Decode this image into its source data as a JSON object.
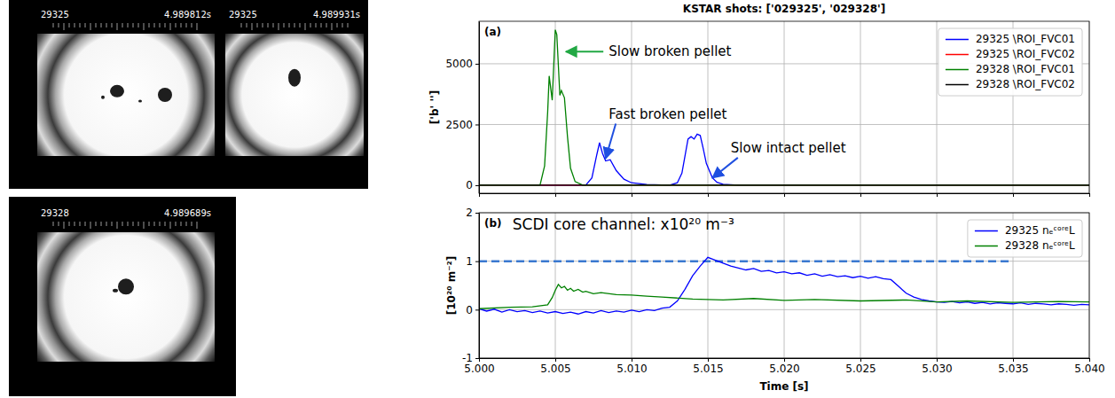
{
  "figure": {
    "title": "KSTAR shots: ['029325', '029328']"
  },
  "images": [
    {
      "shot": "29325",
      "time": "4.989812s"
    },
    {
      "shot": "29325",
      "time": "4.989931s"
    },
    {
      "shot": "29328",
      "time": "4.989689s"
    }
  ],
  "chart_data": [
    {
      "type": "line",
      "panel_label": "(a)",
      "ylabel": "['b' '']",
      "xlim": [
        5.0,
        5.04
      ],
      "ylim": [
        -330,
        6750
      ],
      "xticks": [
        5.0,
        5.005,
        5.01,
        5.015,
        5.02,
        5.025,
        5.03,
        5.035,
        5.04
      ],
      "yticks": [
        0,
        2500,
        5000
      ],
      "grid": true,
      "tick_labels": "y",
      "legend": "upper right",
      "series": [
        {
          "name": "29325 \\ROI_FVC01",
          "color": "#0000ff",
          "x": [
            5.0,
            5.007,
            5.0074,
            5.0077,
            5.0079,
            5.0081,
            5.0083,
            5.0086,
            5.009,
            5.0095,
            5.01,
            5.011,
            5.0125,
            5.013,
            5.0133,
            5.0135,
            5.0137,
            5.0139,
            5.0141,
            5.0143,
            5.0145,
            5.0147,
            5.0149,
            5.0151,
            5.0153,
            5.0156,
            5.016,
            5.017,
            5.04
          ],
          "values": [
            0,
            0,
            300,
            1200,
            1750,
            1300,
            1000,
            1050,
            600,
            250,
            100,
            30,
            0,
            100,
            500,
            1200,
            1900,
            2000,
            1900,
            2100,
            2050,
            1500,
            900,
            600,
            300,
            120,
            40,
            0,
            0
          ]
        },
        {
          "name": "29325 \\ROI_FVC02",
          "color": "#ff0000",
          "x": [
            5.0,
            5.04
          ],
          "values": [
            0,
            0
          ]
        },
        {
          "name": "29328 \\ROI_FVC01",
          "color": "#008000",
          "x": [
            5.0,
            5.004,
            5.0043,
            5.0045,
            5.0046,
            5.0048,
            5.005,
            5.0051,
            5.0053,
            5.0054,
            5.0056,
            5.0058,
            5.006,
            5.0063,
            5.0068,
            5.04
          ],
          "values": [
            0,
            0,
            800,
            3000,
            4500,
            3500,
            6400,
            6200,
            3700,
            3900,
            3600,
            2000,
            700,
            150,
            0,
            0
          ]
        },
        {
          "name": "29328 \\ROI_FVC02",
          "color": "#000000",
          "x": [
            5.0,
            5.04
          ],
          "values": [
            0,
            0
          ]
        }
      ],
      "annotations": [
        {
          "text": "Slow broken pellet",
          "xy": [
            5.0057,
            5500
          ],
          "xytext": [
            5.0085,
            5500
          ],
          "color": "#22a844"
        },
        {
          "text": "Fast broken pellet",
          "xy": [
            5.0083,
            1100
          ],
          "xytext": [
            5.0085,
            2900
          ],
          "color": "#1f4fe0"
        },
        {
          "text": "Slow intact pellet",
          "xy": [
            5.0153,
            300
          ],
          "xytext": [
            5.0165,
            1500
          ],
          "color": "#1f4fe0"
        }
      ]
    },
    {
      "type": "line",
      "panel_label": "(b)",
      "ylabel": "[10²⁰ m⁻²]",
      "xlabel": "Time [s]",
      "xlim": [
        5.0,
        5.04
      ],
      "ylim": [
        -1,
        2
      ],
      "xticks": [
        {
          "value": 5.0,
          "label": "5.000"
        },
        {
          "value": 5.005,
          "label": "5.005"
        },
        {
          "value": 5.01,
          "label": "5.010"
        },
        {
          "value": 5.015,
          "label": "5.015"
        },
        {
          "value": 5.02,
          "label": "5.020"
        },
        {
          "value": 5.025,
          "label": "5.025"
        },
        {
          "value": 5.03,
          "label": "5.030"
        },
        {
          "value": 5.035,
          "label": "5.035"
        },
        {
          "value": 5.04,
          "label": "5.040"
        }
      ],
      "yticks": [
        -1,
        0,
        1,
        2
      ],
      "grid": true,
      "legend": "upper right",
      "series": [
        {
          "name": "29325 nₑᶜᵒʳᵉL",
          "color": "#0000ff",
          "x": [
            5.0,
            5.0005,
            5.001,
            5.0015,
            5.002,
            5.0025,
            5.003,
            5.0035,
            5.004,
            5.0045,
            5.005,
            5.0055,
            5.006,
            5.0065,
            5.007,
            5.0075,
            5.008,
            5.0085,
            5.009,
            5.0095,
            5.01,
            5.0105,
            5.011,
            5.0115,
            5.012,
            5.0125,
            5.013,
            5.0135,
            5.014,
            5.0145,
            5.015,
            5.0155,
            5.016,
            5.0165,
            5.017,
            5.0175,
            5.018,
            5.0185,
            5.019,
            5.0195,
            5.02,
            5.0205,
            5.021,
            5.0215,
            5.022,
            5.0225,
            5.023,
            5.0235,
            5.024,
            5.0245,
            5.025,
            5.0255,
            5.026,
            5.0265,
            5.027,
            5.0275,
            5.028,
            5.0285,
            5.029,
            5.0295,
            5.03,
            5.0305,
            5.031,
            5.0315,
            5.032,
            5.0325,
            5.033,
            5.0335,
            5.034,
            5.0345,
            5.035,
            5.0355,
            5.036,
            5.0365,
            5.037,
            5.0375,
            5.038,
            5.0385,
            5.039,
            5.0395,
            5.04
          ],
          "values": [
            0.02,
            -0.03,
            0.01,
            -0.05,
            0,
            -0.04,
            -0.02,
            -0.06,
            -0.03,
            -0.07,
            -0.04,
            -0.08,
            -0.05,
            -0.09,
            -0.04,
            -0.07,
            -0.02,
            -0.06,
            -0.03,
            -0.05,
            -0.01,
            -0.04,
            0,
            -0.02,
            0.03,
            0.05,
            0.18,
            0.42,
            0.7,
            0.9,
            1.08,
            1.02,
            0.96,
            0.9,
            0.86,
            0.82,
            0.85,
            0.79,
            0.81,
            0.76,
            0.78,
            0.74,
            0.76,
            0.71,
            0.74,
            0.69,
            0.72,
            0.68,
            0.7,
            0.66,
            0.69,
            0.65,
            0.68,
            0.64,
            0.62,
            0.48,
            0.34,
            0.26,
            0.21,
            0.18,
            0.16,
            0.15,
            0.17,
            0.14,
            0.16,
            0.13,
            0.15,
            0.12,
            0.14,
            0.13,
            0.12,
            0.14,
            0.11,
            0.13,
            0.12,
            0.1,
            0.12,
            0.11,
            0.09,
            0.11,
            0.1
          ]
        },
        {
          "name": "29328 nₑᶜᵒʳᵉL",
          "color": "#008000",
          "x": [
            5.0,
            5.002,
            5.0035,
            5.0045,
            5.0048,
            5.005,
            5.0052,
            5.0054,
            5.0056,
            5.0058,
            5.006,
            5.0062,
            5.0065,
            5.0068,
            5.007,
            5.0075,
            5.008,
            5.009,
            5.01,
            5.011,
            5.012,
            5.014,
            5.016,
            5.018,
            5.02,
            5.022,
            5.025,
            5.028,
            5.03,
            5.032,
            5.035,
            5.038,
            5.04
          ],
          "values": [
            0.02,
            0.05,
            0.06,
            0.1,
            0.25,
            0.4,
            0.52,
            0.45,
            0.48,
            0.4,
            0.44,
            0.38,
            0.42,
            0.36,
            0.38,
            0.33,
            0.35,
            0.31,
            0.3,
            0.28,
            0.26,
            0.22,
            0.2,
            0.23,
            0.19,
            0.21,
            0.18,
            0.2,
            0.16,
            0.18,
            0.15,
            0.17,
            0.16
          ]
        }
      ],
      "reference_lines": [
        {
          "y": 1,
          "x": [
            5.0,
            5.035
          ],
          "color": "#3a78d0",
          "line_style": "dashed"
        }
      ],
      "annotations": [
        {
          "text": "SCDI core channel: x10²⁰ m⁻³",
          "xytext": [
            5.0022,
            1.74
          ]
        }
      ]
    }
  ]
}
